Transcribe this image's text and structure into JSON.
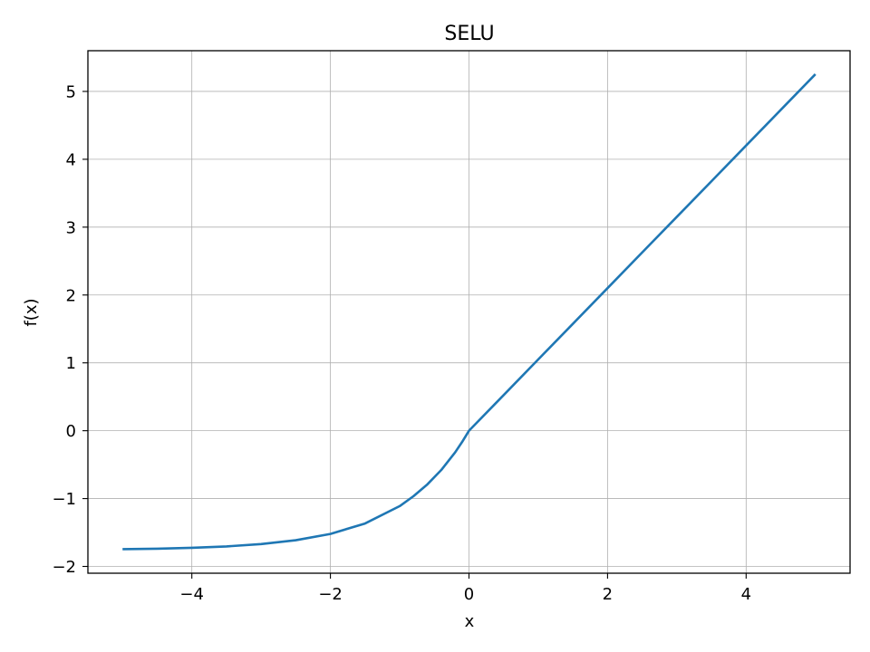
{
  "chart_data": {
    "type": "line",
    "title": "SELU",
    "xlabel": "x",
    "ylabel": "f(x)",
    "xlim": [
      -5.5,
      5.5
    ],
    "ylim": [
      -2.1,
      5.6
    ],
    "xticks": [
      -4,
      -2,
      0,
      2,
      4
    ],
    "xtick_labels": [
      "−4",
      "−2",
      "0",
      "2",
      "4"
    ],
    "yticks": [
      -2,
      -1,
      0,
      1,
      2,
      3,
      4,
      5
    ],
    "ytick_labels": [
      "−2",
      "−1",
      "0",
      "1",
      "2",
      "3",
      "4",
      "5"
    ],
    "grid": true,
    "legend": false,
    "line_color": "#1f77b4",
    "series": [
      {
        "x": [
          -5,
          -4.5,
          -4,
          -3.5,
          -3,
          -2.5,
          -2,
          -1.5,
          -1,
          -0.8,
          -0.6,
          -0.4,
          -0.2,
          -0.1,
          0,
          0.5,
          1,
          1.5,
          2,
          2.5,
          3,
          3.5,
          4,
          4.5,
          5
        ],
        "values": [
          -1.746,
          -1.739,
          -1.726,
          -1.705,
          -1.671,
          -1.614,
          -1.521,
          -1.367,
          -1.111,
          -0.964,
          -0.79,
          -0.579,
          -0.319,
          -0.167,
          0,
          0.525,
          1.051,
          1.576,
          2.101,
          2.627,
          3.152,
          3.677,
          4.203,
          4.728,
          5.254
        ]
      }
    ]
  }
}
